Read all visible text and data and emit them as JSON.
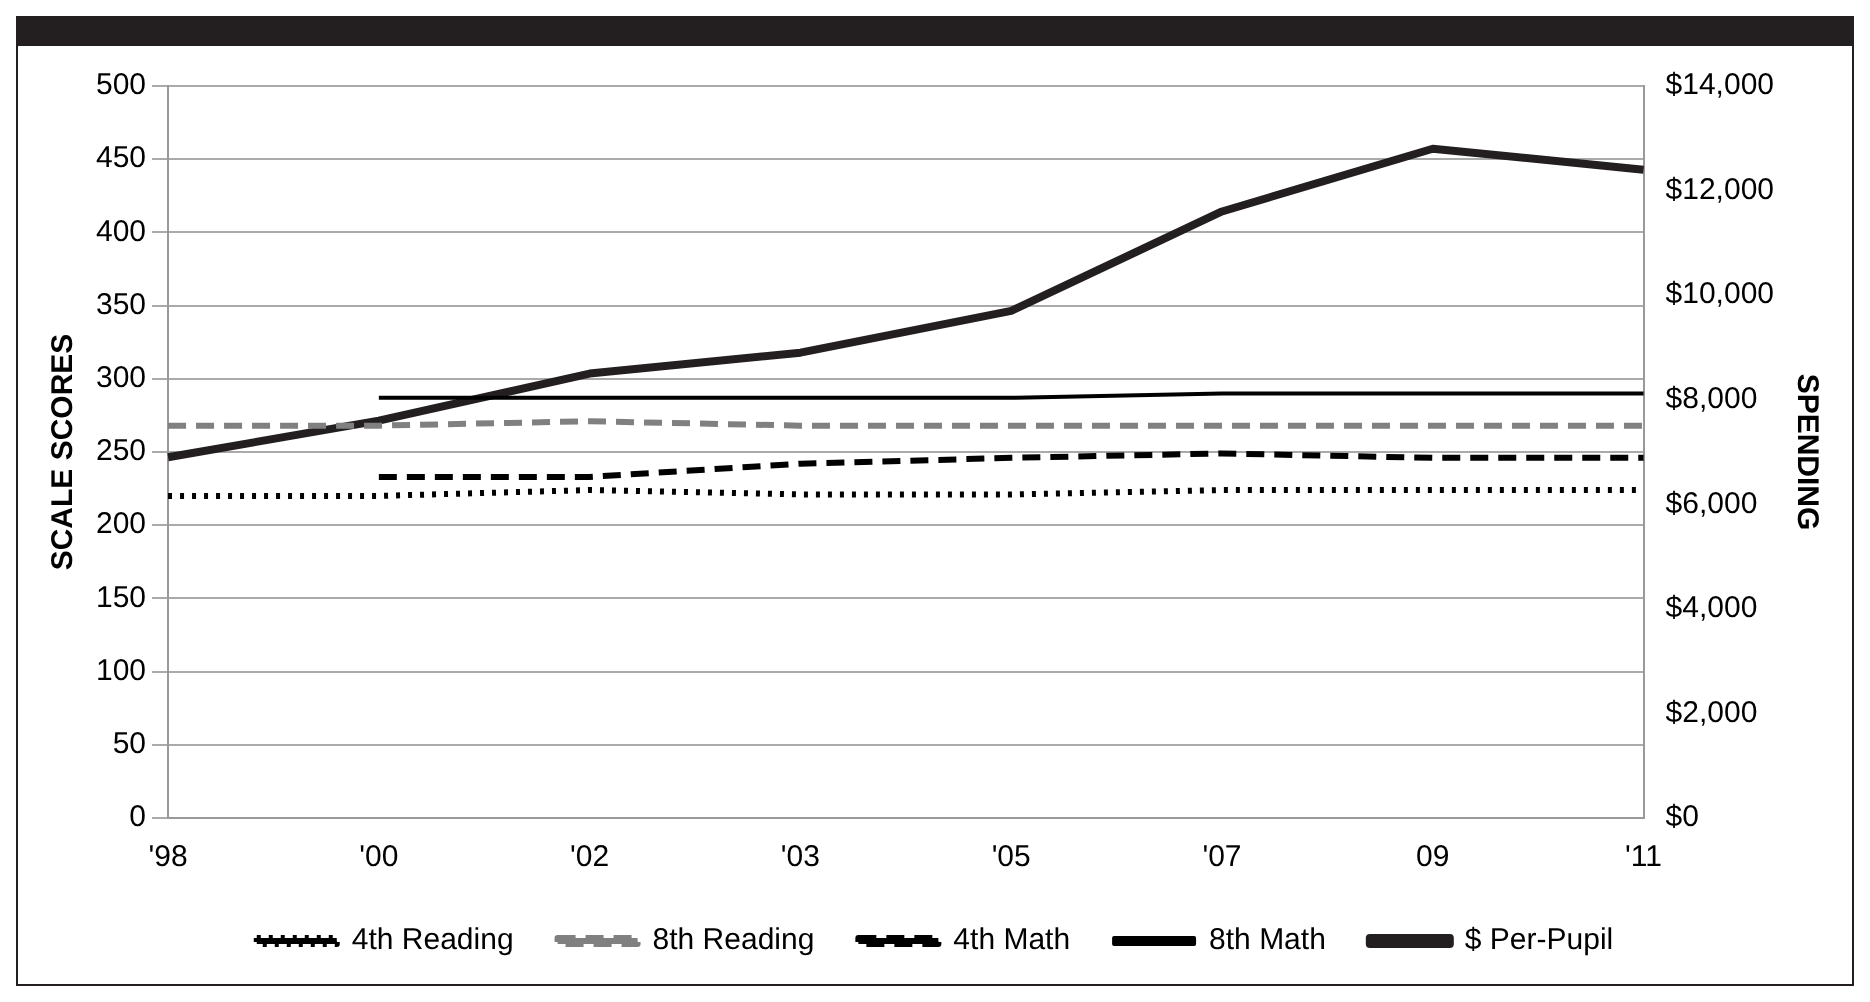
{
  "chart_data": {
    "type": "line",
    "ylabel": "SCALE SCORES",
    "y2label": "SPENDING",
    "categories": [
      "'98",
      "'00",
      "'02",
      "'03",
      "'05",
      "'07",
      "09",
      "'11"
    ],
    "series": [
      {
        "name": "4th Reading",
        "color": "#000000",
        "line_style": "dotted",
        "values": [
          220,
          220,
          224,
          221,
          221,
          224,
          224,
          224
        ]
      },
      {
        "name": "8th Reading",
        "color": "#808080",
        "line_style": "dashed",
        "values": [
          268,
          268,
          271,
          268,
          268,
          268,
          268,
          268
        ]
      },
      {
        "name": "4th Math",
        "color": "#000000",
        "line_style": "dashed",
        "values": [
          null,
          233,
          233,
          242,
          246,
          249,
          246,
          246
        ]
      },
      {
        "name": "8th Math",
        "color": "#000000",
        "line_style": "solid",
        "values": [
          null,
          287,
          287,
          287,
          287,
          290,
          290,
          290
        ]
      },
      {
        "name": "$ Per-Pupil",
        "color": "#231f20",
        "line_style": "solid",
        "axis": "y2",
        "values": [
          6900,
          7600,
          8500,
          8900,
          9700,
          11600,
          12800,
          12400
        ]
      }
    ],
    "ylim": [
      0,
      500
    ],
    "yticks": [
      0,
      50,
      100,
      150,
      200,
      250,
      300,
      350,
      400,
      450,
      500
    ],
    "y2lim": [
      0,
      14000
    ],
    "y2ticks": [
      {
        "value": 0,
        "label": "$0"
      },
      {
        "value": 2000,
        "label": "$2,000"
      },
      {
        "value": 4000,
        "label": "$4,000"
      },
      {
        "value": 6000,
        "label": "$6,000"
      },
      {
        "value": 8000,
        "label": "$8,000"
      },
      {
        "value": 10000,
        "label": "$10,000"
      },
      {
        "value": 12000,
        "label": "$12,000"
      },
      {
        "value": 14000,
        "label": "$14,000"
      }
    ],
    "grid": "y",
    "legend": "bottom",
    "marker": "none"
  }
}
